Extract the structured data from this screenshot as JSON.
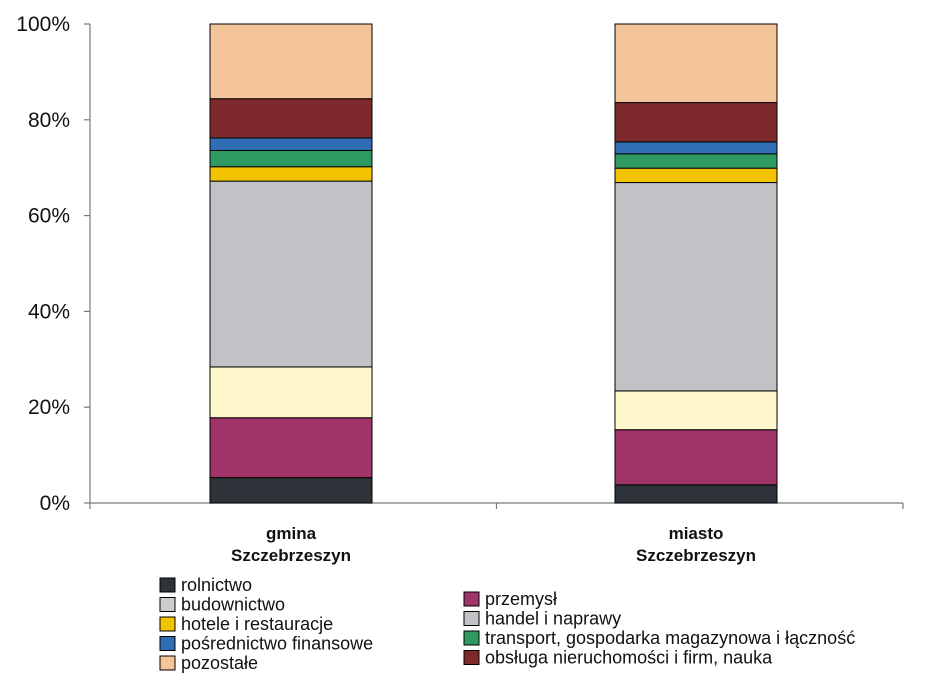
{
  "chart_data": {
    "type": "bar",
    "stacked": true,
    "normalized": true,
    "categories": [
      {
        "line1": "gmina",
        "line2": "Szczebrzeszyn"
      },
      {
        "line1": "miasto",
        "line2": "Szczebrzeszyn"
      }
    ],
    "y_ticks": [
      "0%",
      "20%",
      "40%",
      "60%",
      "80%",
      "100%"
    ],
    "ylim": [
      0,
      100
    ],
    "grid": false,
    "legend_position": "bottom",
    "series": [
      {
        "name": "rolnictwo",
        "color": "#2d3338",
        "values": [
          5.3,
          3.8
        ]
      },
      {
        "name": "przemysł",
        "color": "#a03468",
        "values": [
          12.5,
          11.5
        ]
      },
      {
        "name": "budowictwo",
        "color": "#fff7cc",
        "values": [
          10.6,
          8.1
        ]
      },
      {
        "name": "handel i naprawy",
        "color": "#c0c2c6",
        "values": [
          38.8,
          43.5
        ]
      },
      {
        "name": "hotele i restauracje",
        "color": "#f2c400",
        "values": [
          3.0,
          3.0
        ]
      },
      {
        "name": "transport, gospodarka magazynowa i łączność",
        "color": "#2e9a62",
        "values": [
          3.4,
          3.0
        ]
      },
      {
        "name": "pośrednictwo finansowe",
        "color": "#2f6db5",
        "values": [
          2.6,
          2.5
        ]
      },
      {
        "name": "obsługa nieruchomości i firm, nauka",
        "color": "#7e2a2c",
        "values": [
          8.2,
          8.2
        ]
      },
      {
        "name": "pozostałe",
        "color": "#f4c59a",
        "values": [
          15.6,
          16.4
        ]
      }
    ],
    "legend": [
      "rolnictwo",
      "budownictwo",
      "hotele i restauracje",
      "pośrednictwo finansowe",
      "pozostałe",
      "przemysł",
      "handel i naprawy",
      "transport, gospodarka magazynowa i łączność",
      "obsługa nieruchomości i firm, nauka"
    ]
  }
}
